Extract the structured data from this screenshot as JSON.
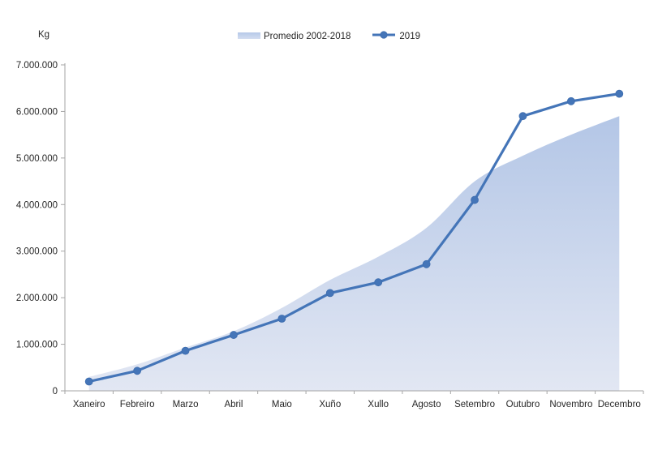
{
  "chart_data": {
    "type": "combo-area-line",
    "title": "",
    "xlabel": "",
    "ylabel": "Kg",
    "categories": [
      "Xaneiro",
      "Febreiro",
      "Marzo",
      "Abril",
      "Maio",
      "Xuño",
      "Xullo",
      "Agosto",
      "Setembro",
      "Outubro",
      "Novembro",
      "Decembro"
    ],
    "series": [
      {
        "name": "Promedio 2002-2018",
        "type": "area",
        "smooth": true,
        "color_top": "#AFC3E5",
        "color_bottom": "#E2E7F3",
        "values": [
          300000,
          570000,
          930000,
          1280000,
          1780000,
          2380000,
          2880000,
          3500000,
          4500000,
          5050000,
          5500000,
          5900000
        ]
      },
      {
        "name": "2019",
        "type": "line",
        "color": "#4475B8",
        "marker_stroke": "#3E6DAE",
        "values": [
          200000,
          430000,
          860000,
          1200000,
          1550000,
          2100000,
          2330000,
          2720000,
          4100000,
          5900000,
          6220000,
          6380000
        ]
      }
    ],
    "ylim": [
      0,
      7000000
    ],
    "ytick_step": 1000000,
    "ytick_labels": [
      "0",
      "1.000.000",
      "2.000.000",
      "3.000.000",
      "4.000.000",
      "5.000.000",
      "6.000.000",
      "7.000.000"
    ],
    "legend_position": "top-center",
    "grid": false,
    "axis_color": "#A6A6A6",
    "text_color": "#262626"
  }
}
